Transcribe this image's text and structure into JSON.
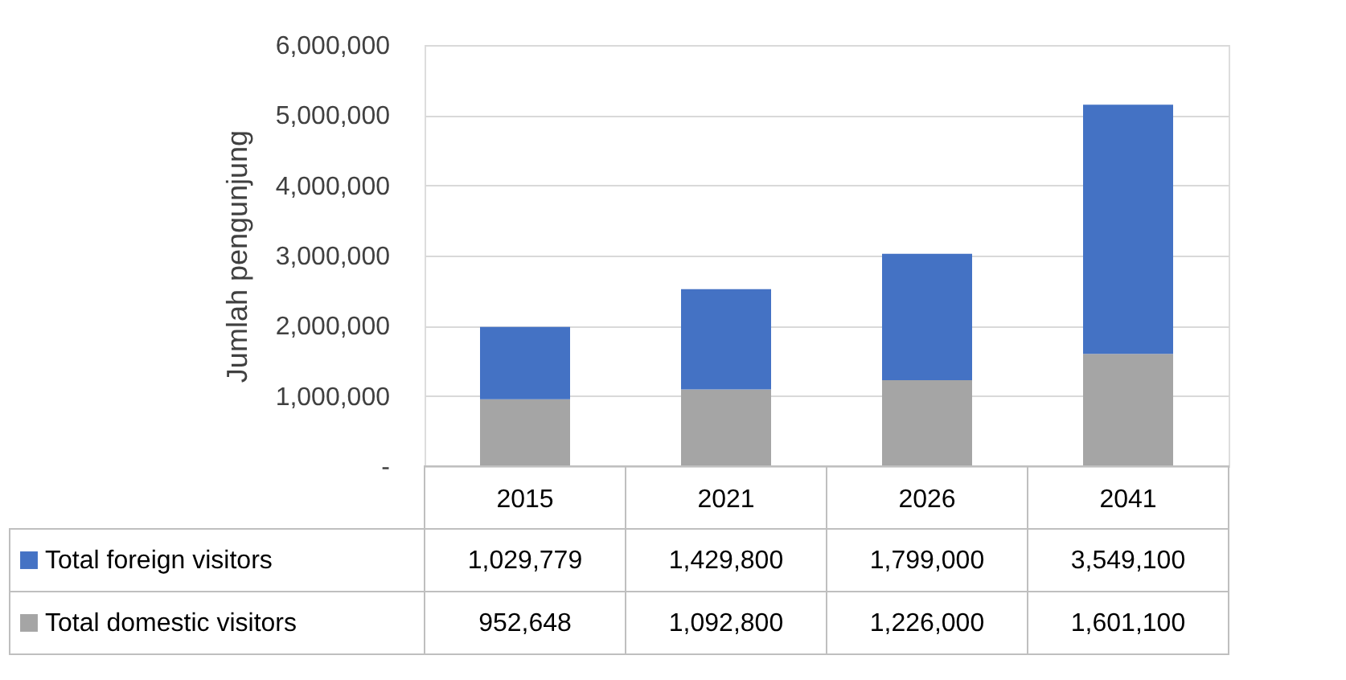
{
  "chart_data": {
    "type": "bar",
    "stacked": true,
    "ylabel": "Jumlah pengunjung",
    "categories": [
      "2015",
      "2021",
      "2026",
      "2041"
    ],
    "series": [
      {
        "name": "Total domestic visitors",
        "color": "#a5a5a5",
        "values": [
          952648,
          1092800,
          1226000,
          1601100
        ],
        "value_labels": [
          "952,648",
          "1,092,800",
          "1,226,000",
          "1,601,100"
        ]
      },
      {
        "name": "Total foreign visitors",
        "color": "#4472c4",
        "values": [
          1029779,
          1429800,
          1799000,
          3549100
        ],
        "value_labels": [
          "1,029,779",
          "1,429,800",
          "1,799,000",
          "3,549,100"
        ]
      }
    ],
    "ylim": [
      0,
      6000000
    ],
    "yticks": [
      {
        "value": 0,
        "label": "-"
      },
      {
        "value": 1000000,
        "label": "1,000,000"
      },
      {
        "value": 2000000,
        "label": "2,000,000"
      },
      {
        "value": 3000000,
        "label": "3,000,000"
      },
      {
        "value": 4000000,
        "label": "4,000,000"
      },
      {
        "value": 5000000,
        "label": "5,000,000"
      },
      {
        "value": 6000000,
        "label": "6,000,000"
      }
    ],
    "grid": "y",
    "legend": "bottom"
  }
}
